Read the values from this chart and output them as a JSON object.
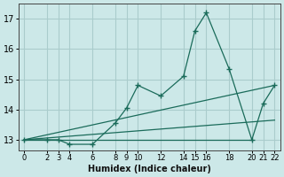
{
  "xlabel": "Humidex (Indice chaleur)",
  "bg_color": "#cce8e8",
  "grid_color": "#aacccc",
  "line_color": "#1a6b5a",
  "xlim": [
    -0.5,
    22.5
  ],
  "ylim": [
    12.65,
    17.5
  ],
  "yticks": [
    13,
    14,
    15,
    16,
    17
  ],
  "xticks": [
    0,
    2,
    3,
    4,
    6,
    8,
    9,
    10,
    12,
    14,
    15,
    16,
    18,
    20,
    21,
    22
  ],
  "series": [
    [
      0,
      13.0
    ],
    [
      2,
      13.0
    ],
    [
      3,
      13.0
    ],
    [
      4,
      12.85
    ],
    [
      6,
      12.85
    ],
    [
      8,
      13.55
    ],
    [
      9,
      14.05
    ],
    [
      10,
      14.8
    ],
    [
      12,
      14.45
    ],
    [
      14,
      15.1
    ],
    [
      15,
      16.6
    ],
    [
      16,
      17.2
    ],
    [
      18,
      15.35
    ],
    [
      20,
      13.0
    ],
    [
      21,
      14.2
    ],
    [
      22,
      14.8
    ]
  ],
  "trend_line1": [
    [
      0,
      13.0
    ],
    [
      22,
      14.8
    ]
  ],
  "trend_line2": [
    [
      0,
      13.0
    ],
    [
      22,
      13.65
    ]
  ],
  "trend_line3": [
    [
      0,
      13.0
    ],
    [
      20,
      13.0
    ]
  ]
}
